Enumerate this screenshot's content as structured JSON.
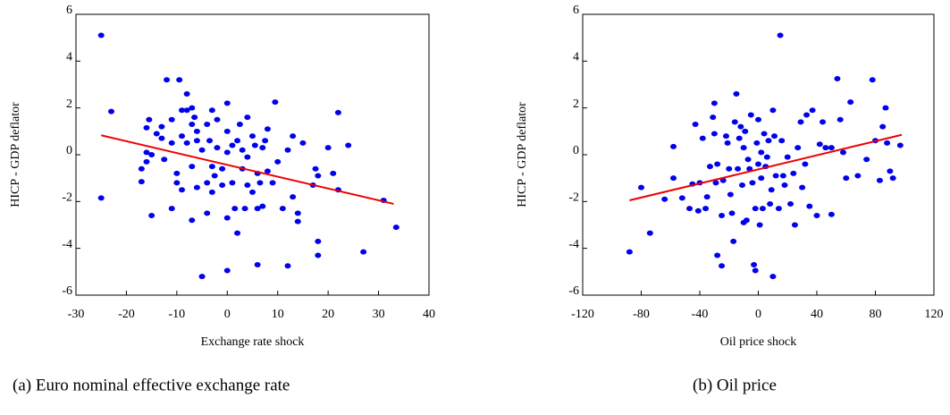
{
  "chart_data": [
    {
      "type": "scatter",
      "caption": "(a) Euro nominal effective exchange rate",
      "x_label": "Exchange rate shock",
      "y_label": "HICP - GDP deflator",
      "color": "#0000ee",
      "xlim": [
        -30,
        40
      ],
      "ylim": [
        -6,
        6
      ],
      "xticks": [
        -30,
        -20,
        -10,
        0,
        10,
        20,
        30,
        40
      ],
      "yticks": [
        -6,
        -4,
        -2,
        0,
        2,
        4,
        6
      ],
      "x": [
        -25,
        -25,
        -23,
        -17,
        -17,
        -16,
        -16,
        -16,
        -15.5,
        -15,
        -15,
        -14,
        -13,
        -13,
        -12.5,
        -12,
        -11,
        -11,
        -11,
        -10,
        -10,
        -9.5,
        -9,
        -9,
        -9,
        -8,
        -8,
        -8,
        -7,
        -7,
        -7,
        -7,
        -6.5,
        -6,
        -6,
        -6,
        -5,
        -5,
        -4,
        -4,
        -4,
        -3.5,
        -3,
        -3,
        -3,
        -2.5,
        -2,
        -2,
        -1,
        -1,
        0,
        0,
        0,
        0,
        0,
        1,
        1,
        1.5,
        2,
        2,
        2.5,
        3,
        3,
        3.5,
        4,
        4,
        4,
        5,
        5,
        5.5,
        6,
        6,
        6,
        6.5,
        7,
        7,
        7.5,
        8,
        8,
        9,
        9.5,
        10,
        11,
        12,
        12,
        13,
        13,
        14,
        14,
        15,
        17,
        17.5,
        18,
        18,
        18,
        20,
        21,
        22,
        22,
        24,
        27,
        31,
        33.5
      ],
      "y": [
        5.1,
        -1.85,
        1.85,
        -0.6,
        -1.15,
        0.1,
        -0.3,
        1.15,
        1.5,
        -2.6,
        0,
        0.9,
        1.2,
        0.7,
        -0.2,
        3.2,
        -2.3,
        1.5,
        0.5,
        -1.2,
        -0.8,
        3.2,
        1.9,
        -1.5,
        0.8,
        2.6,
        1.9,
        0.5,
        2.0,
        1.3,
        -2.8,
        -0.5,
        1.6,
        1.0,
        0.6,
        -1.4,
        0.2,
        -5.2,
        -1.2,
        1.3,
        -2.5,
        0.6,
        1.9,
        -0.5,
        -1.6,
        -0.9,
        1.5,
        0.3,
        -1.3,
        -0.6,
        2.2,
        -4.95,
        -2.7,
        0.1,
        1.0,
        0.4,
        -1.2,
        -2.3,
        -3.35,
        0.6,
        1.3,
        -0.6,
        0.2,
        -2.3,
        1.6,
        -1.3,
        -0.1,
        -1.6,
        0.8,
        0.4,
        -4.7,
        -0.8,
        -2.3,
        -1.2,
        0.3,
        -2.2,
        0.6,
        1.1,
        -0.7,
        -1.2,
        2.25,
        -0.3,
        -2.3,
        -4.75,
        0.2,
        0.8,
        -1.8,
        -2.5,
        -2.85,
        0.5,
        -1.3,
        -0.6,
        -3.7,
        -4.3,
        -0.9,
        0.3,
        -0.8,
        1.8,
        -1.5,
        0.4,
        -4.15,
        -1.95,
        -3.1
      ],
      "fit": {
        "color": "#ee0000",
        "x": [
          -25,
          33
        ],
        "y": [
          0.83,
          -2.1
        ]
      }
    },
    {
      "type": "scatter",
      "caption": "(b) Oil price",
      "x_label": "Oil price shock",
      "y_label": "HICP - GDP deflator",
      "color": "#0000ee",
      "xlim": [
        -120,
        120
      ],
      "ylim": [
        -6,
        6
      ],
      "xticks": [
        -120,
        -80,
        -40,
        0,
        40,
        80,
        120
      ],
      "yticks": [
        -6,
        -4,
        -2,
        0,
        2,
        4,
        6
      ],
      "x": [
        -88,
        -80,
        -74,
        -64,
        -58,
        -58,
        -52,
        -47,
        -45,
        -43,
        -41,
        -40,
        -38,
        -36,
        -35,
        -33,
        -31,
        -30,
        -30,
        -29,
        -28,
        -28,
        -25,
        -25,
        -24,
        -22,
        -21,
        -20,
        -19,
        -18,
        -17,
        -16,
        -15,
        -14,
        -13,
        -12,
        -11,
        -10,
        -10,
        -9,
        -8,
        -7,
        -6,
        -5,
        -4,
        -3,
        -2,
        -2,
        -1,
        0,
        0,
        1,
        2,
        2,
        3,
        4,
        5,
        6,
        7,
        8,
        9,
        10,
        10,
        11,
        12,
        14,
        15,
        16,
        17,
        18,
        20,
        22,
        24,
        25,
        27,
        29,
        30,
        32,
        33,
        35,
        37,
        40,
        42,
        44,
        46,
        50,
        50,
        54,
        56,
        58,
        60,
        63,
        68,
        74,
        78,
        80,
        83,
        85,
        87,
        88,
        90,
        92,
        97
      ],
      "y": [
        -4.15,
        -1.4,
        -3.35,
        -1.9,
        -1.0,
        0.35,
        -1.85,
        -2.3,
        -1.25,
        1.3,
        -2.4,
        -1.2,
        0.7,
        -2.3,
        -1.8,
        -0.5,
        1.6,
        2.2,
        0.9,
        -1.2,
        -4.3,
        -0.4,
        -4.75,
        -2.6,
        -1.1,
        0.8,
        0.5,
        -0.6,
        -1.7,
        -2.5,
        -3.7,
        1.4,
        2.6,
        -0.6,
        0.7,
        1.2,
        -1.3,
        0.3,
        -2.9,
        1.0,
        -2.8,
        -0.2,
        -0.6,
        1.7,
        -1.2,
        -4.7,
        -2.3,
        -4.95,
        0.5,
        -0.4,
        1.5,
        -3.0,
        0.1,
        -1.0,
        -2.3,
        0.9,
        -0.5,
        -0.1,
        0.6,
        -2.1,
        -1.5,
        1.9,
        -5.2,
        0.8,
        -0.9,
        -2.3,
        5.1,
        0.6,
        -0.9,
        -1.3,
        -0.1,
        -2.1,
        -0.8,
        -3.0,
        0.3,
        1.4,
        -1.4,
        -0.4,
        1.7,
        -2.2,
        1.9,
        -2.6,
        0.45,
        1.4,
        0.3,
        0.3,
        -2.55,
        3.25,
        1.5,
        0.1,
        -1.0,
        2.25,
        -0.9,
        -0.2,
        3.2,
        0.6,
        -1.1,
        1.2,
        2.0,
        0.5,
        -0.7,
        -1.0,
        0.4
      ],
      "fit": {
        "color": "#ee0000",
        "x": [
          -88,
          98
        ],
        "y": [
          -1.95,
          0.85
        ]
      }
    }
  ]
}
